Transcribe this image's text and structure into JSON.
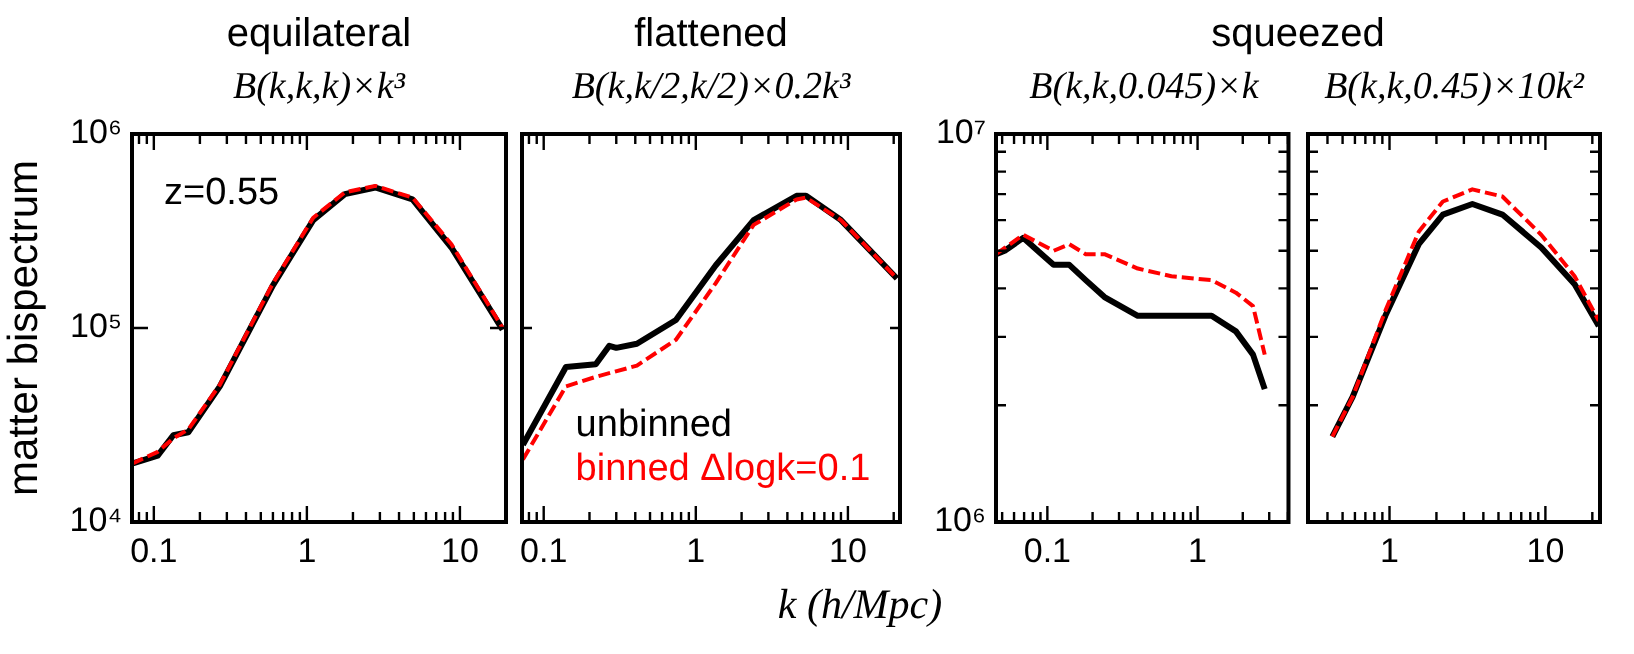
{
  "chart_data": [
    {
      "type": "line",
      "title": "equilateral",
      "subtitle": "B(k,k,k)×k³",
      "ylabel": "matter bispectrum",
      "log": "xy",
      "grid": false,
      "legend": false,
      "tick_labels": "xy",
      "annotations": [
        "z=0.55"
      ],
      "xlim": [
        0.072,
        20
      ],
      "ylim": [
        10000,
        1000000
      ],
      "xticks": [
        {
          "value": 0.08,
          "label": null
        },
        {
          "value": 0.09,
          "label": null
        },
        0.1,
        {
          "value": 0.2,
          "label": null
        },
        {
          "value": 0.3,
          "label": null
        },
        {
          "value": 0.4,
          "label": null
        },
        {
          "value": 0.5,
          "label": null
        },
        {
          "value": 0.6,
          "label": null
        },
        {
          "value": 0.7,
          "label": null
        },
        {
          "value": 0.8,
          "label": null
        },
        {
          "value": 0.9,
          "label": null
        },
        1,
        {
          "value": 2,
          "label": null
        },
        {
          "value": 3,
          "label": null
        },
        {
          "value": 4,
          "label": null
        },
        {
          "value": 5,
          "label": null
        },
        {
          "value": 6,
          "label": null
        },
        {
          "value": 7,
          "label": null
        },
        {
          "value": 8,
          "label": null
        },
        {
          "value": 9,
          "label": null
        },
        10
      ],
      "yticks": [
        {
          "value": 10000,
          "label": "10⁴"
        },
        {
          "value": 100000,
          "label": "10⁵"
        },
        {
          "value": 1000000,
          "label": "10⁶"
        }
      ],
      "series": [
        {
          "color": "#000000",
          "line_style": "solid",
          "x": [
            0.072,
            0.106,
            0.134,
            0.168,
            0.27,
            0.6,
            1.1,
            1.77,
            2.8,
            4.9,
            8.8,
            19
          ],
          "values": [
            20000,
            22000,
            28000,
            29000,
            50000,
            166000,
            360000,
            490000,
            530000,
            460000,
            260000,
            98000
          ]
        },
        {
          "color": "#ff0000",
          "line_style": "dashed",
          "x": [
            0.072,
            0.106,
            0.134,
            0.168,
            0.27,
            0.6,
            1.1,
            1.77,
            2.8,
            4.9,
            8.8,
            19
          ],
          "values": [
            20000,
            23000,
            27000,
            30000,
            51000,
            170000,
            370000,
            500000,
            540000,
            470000,
            270000,
            100000
          ]
        }
      ]
    },
    {
      "type": "line",
      "title": "flattened",
      "subtitle": "B(k,k/2,k/2)×0.2k³",
      "xlabel": "k (h/Mpc)",
      "log": "xy",
      "grid": false,
      "legend": "bottom",
      "tick_labels": "x",
      "xlim": [
        0.072,
        22
      ],
      "ylim": [
        10000,
        1000000
      ],
      "xticks": [
        {
          "value": 0.08,
          "label": null
        },
        {
          "value": 0.09,
          "label": null
        },
        0.1,
        {
          "value": 0.2,
          "label": null
        },
        {
          "value": 0.3,
          "label": null
        },
        {
          "value": 0.4,
          "label": null
        },
        {
          "value": 0.5,
          "label": null
        },
        {
          "value": 0.6,
          "label": null
        },
        {
          "value": 0.7,
          "label": null
        },
        {
          "value": 0.8,
          "label": null
        },
        {
          "value": 0.9,
          "label": null
        },
        1,
        {
          "value": 2,
          "label": null
        },
        {
          "value": 3,
          "label": null
        },
        {
          "value": 4,
          "label": null
        },
        {
          "value": 5,
          "label": null
        },
        {
          "value": 6,
          "label": null
        },
        {
          "value": 7,
          "label": null
        },
        {
          "value": 8,
          "label": null
        },
        {
          "value": 9,
          "label": null
        },
        10,
        {
          "value": 20,
          "label": null
        }
      ],
      "yticks": [
        {
          "value": 10000,
          "label": null
        },
        {
          "value": 100000,
          "label": null
        },
        {
          "value": 1000000,
          "label": null
        }
      ],
      "series": [
        {
          "name": "unbinned",
          "color": "#000000",
          "line_style": "solid",
          "x": [
            0.073,
            0.14,
            0.22,
            0.27,
            0.3,
            0.41,
            0.74,
            1.35,
            2.4,
            4.6,
            5.3,
            9,
            21
          ],
          "values": [
            25000,
            63000,
            65000,
            81000,
            79000,
            83000,
            110000,
            210000,
            360000,
            480000,
            480000,
            360000,
            180000
          ]
        },
        {
          "name": "binned Δlogk=0.1",
          "color": "#ff0000",
          "line_style": "dashed",
          "x": [
            0.073,
            0.14,
            0.22,
            0.41,
            0.74,
            1.35,
            2.4,
            4.6,
            5.3,
            9,
            21
          ],
          "values": [
            21000,
            50000,
            56000,
            64000,
            87000,
            170000,
            340000,
            460000,
            470000,
            360000,
            180000
          ]
        }
      ]
    },
    {
      "type": "line",
      "title": "squeezed",
      "subtitle": "B(k,k,0.045)×k",
      "log": "xy",
      "grid": false,
      "legend": false,
      "tick_labels": "xy",
      "xlim": [
        0.0455,
        4.03
      ],
      "ylim": [
        1000000,
        10000000
      ],
      "xticks": [
        {
          "value": 0.05,
          "label": null
        },
        {
          "value": 0.06,
          "label": null
        },
        {
          "value": 0.07,
          "label": null
        },
        {
          "value": 0.08,
          "label": null
        },
        {
          "value": 0.09,
          "label": null
        },
        0.1,
        {
          "value": 0.2,
          "label": null
        },
        {
          "value": 0.3,
          "label": null
        },
        {
          "value": 0.4,
          "label": null
        },
        {
          "value": 0.5,
          "label": null
        },
        {
          "value": 0.6,
          "label": null
        },
        {
          "value": 0.7,
          "label": null
        },
        {
          "value": 0.8,
          "label": null
        },
        {
          "value": 0.9,
          "label": null
        },
        1,
        {
          "value": 2,
          "label": null
        },
        {
          "value": 3,
          "label": null
        },
        {
          "value": 4,
          "label": null
        }
      ],
      "yticks": [
        {
          "value": 1000000,
          "label": "10⁶"
        },
        {
          "value": 2000000,
          "label": null
        },
        {
          "value": 3000000,
          "label": null
        },
        {
          "value": 4000000,
          "label": null
        },
        {
          "value": 5000000,
          "label": null
        },
        {
          "value": 6000000,
          "label": null
        },
        {
          "value": 7000000,
          "label": null
        },
        {
          "value": 8000000,
          "label": null
        },
        {
          "value": 9000000,
          "label": null
        },
        {
          "value": 10000000,
          "label": "10⁷"
        }
      ],
      "series": [
        {
          "color": "#000000",
          "line_style": "solid",
          "x": [
            0.0455,
            0.052,
            0.069,
            0.11,
            0.14,
            0.18,
            0.24,
            0.4,
            0.67,
            1.24,
            1.8,
            2.34,
            2.8
          ],
          "values": [
            4900000,
            5000000,
            5400000,
            4600000,
            4600000,
            4200000,
            3800000,
            3400000,
            3400000,
            3400000,
            3100000,
            2700000,
            2200000
          ]
        },
        {
          "color": "#ff0000",
          "line_style": "dashed",
          "x": [
            0.0455,
            0.069,
            0.11,
            0.14,
            0.18,
            0.24,
            0.4,
            0.67,
            1.24,
            1.8,
            2.34,
            2.8
          ],
          "values": [
            4900000,
            5500000,
            5000000,
            5200000,
            4900000,
            4900000,
            4500000,
            4300000,
            4200000,
            3900000,
            3600000,
            2700000
          ]
        }
      ]
    },
    {
      "type": "line",
      "subtitle": "B(k,k,0.45)×10k²",
      "log": "xy",
      "grid": false,
      "legend": false,
      "tick_labels": "x",
      "xlim": [
        0.3,
        22.4
      ],
      "ylim": [
        1000000,
        10000000
      ],
      "xticks": [
        {
          "value": 0.4,
          "label": null
        },
        {
          "value": 0.5,
          "label": null
        },
        {
          "value": 0.6,
          "label": null
        },
        {
          "value": 0.7,
          "label": null
        },
        {
          "value": 0.8,
          "label": null
        },
        {
          "value": 0.9,
          "label": null
        },
        1,
        {
          "value": 2,
          "label": null
        },
        {
          "value": 3,
          "label": null
        },
        {
          "value": 4,
          "label": null
        },
        {
          "value": 5,
          "label": null
        },
        {
          "value": 6,
          "label": null
        },
        {
          "value": 7,
          "label": null
        },
        {
          "value": 8,
          "label": null
        },
        {
          "value": 9,
          "label": null
        },
        10,
        {
          "value": 20,
          "label": null
        }
      ],
      "yticks": [
        {
          "value": 1000000,
          "label": null
        },
        {
          "value": 2000000,
          "label": null
        },
        {
          "value": 3000000,
          "label": null
        },
        {
          "value": 4000000,
          "label": null
        },
        {
          "value": 5000000,
          "label": null
        },
        {
          "value": 6000000,
          "label": null
        },
        {
          "value": 7000000,
          "label": null
        },
        {
          "value": 8000000,
          "label": null
        },
        {
          "value": 9000000,
          "label": null
        },
        {
          "value": 10000000,
          "label": null
        }
      ],
      "series": [
        {
          "color": "#000000",
          "line_style": "solid",
          "x": [
            0.43,
            0.58,
            0.94,
            1.54,
            2.2,
            3.4,
            5.3,
            9.4,
            15.4,
            22
          ],
          "values": [
            1660000,
            2100000,
            3400000,
            5200000,
            6200000,
            6600000,
            6200000,
            5100000,
            4100000,
            3200000
          ]
        },
        {
          "color": "#ff0000",
          "line_style": "dashed",
          "x": [
            0.43,
            0.58,
            0.94,
            1.54,
            2.2,
            3.4,
            5.3,
            9.4,
            15.4,
            22
          ],
          "values": [
            1660000,
            2100000,
            3500000,
            5600000,
            6700000,
            7200000,
            6900000,
            5500000,
            4300000,
            3300000
          ]
        }
      ]
    }
  ]
}
